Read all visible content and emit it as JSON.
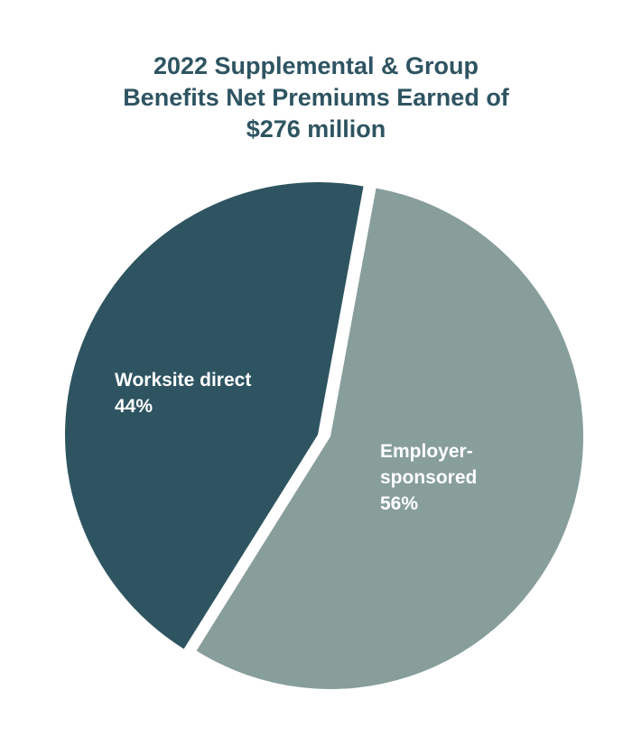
{
  "chart_data": {
    "type": "pie",
    "title_lines": [
      "2022 Supplemental & Group",
      "Benefits Net Premiums Earned of",
      "$276 million"
    ],
    "slices": [
      {
        "label_lines": [
          "Worksite direct"
        ],
        "pct_label": "44%",
        "value": 44,
        "color": "#2e5461"
      },
      {
        "label_lines": [
          "Employer-",
          "sponsored"
        ],
        "pct_label": "56%",
        "value": 56,
        "color": "#879e9b"
      }
    ]
  }
}
